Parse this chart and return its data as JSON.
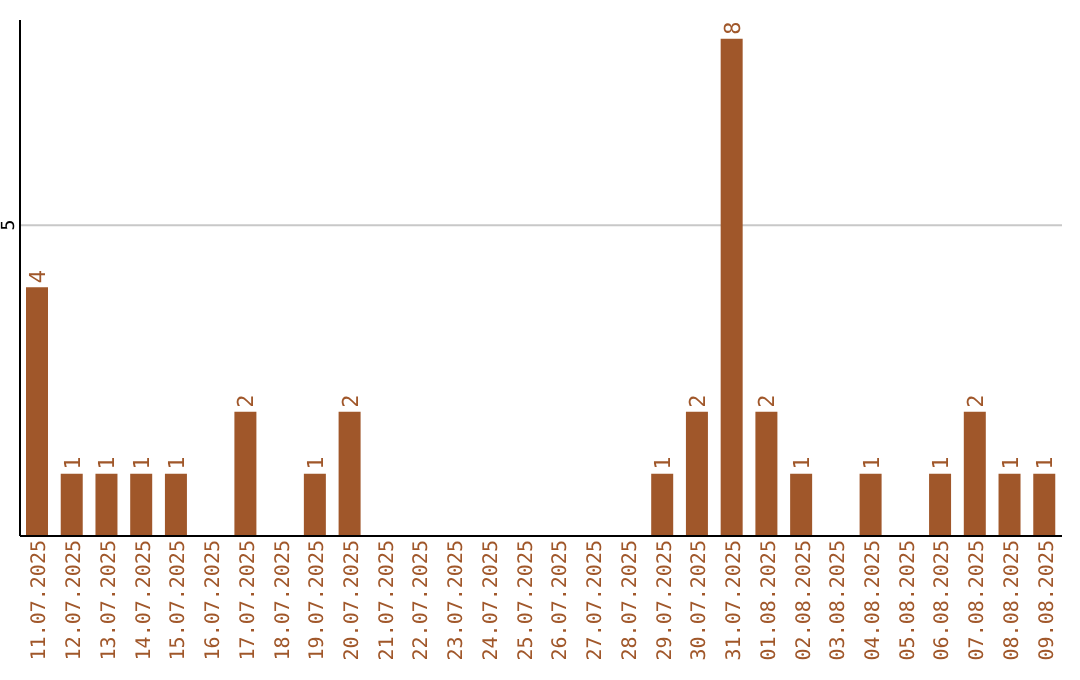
{
  "chart_data": {
    "type": "bar",
    "categories": [
      "11.07.2025",
      "12.07.2025",
      "13.07.2025",
      "14.07.2025",
      "15.07.2025",
      "16.07.2025",
      "17.07.2025",
      "18.07.2025",
      "19.07.2025",
      "20.07.2025",
      "21.07.2025",
      "22.07.2025",
      "23.07.2025",
      "24.07.2025",
      "25.07.2025",
      "26.07.2025",
      "27.07.2025",
      "28.07.2025",
      "29.07.2025",
      "30.07.2025",
      "31.07.2025",
      "01.08.2025",
      "02.08.2025",
      "03.08.2025",
      "04.08.2025",
      "05.08.2025",
      "06.08.2025",
      "07.08.2025",
      "08.08.2025",
      "09.08.2025"
    ],
    "values": [
      4,
      1,
      1,
      1,
      1,
      0,
      2,
      0,
      1,
      2,
      0,
      0,
      0,
      0,
      0,
      0,
      0,
      0,
      1,
      2,
      8,
      2,
      1,
      0,
      1,
      0,
      1,
      2,
      1,
      1
    ],
    "value_labels": [
      "4",
      "1",
      "1",
      "1",
      "1",
      null,
      "2",
      null,
      "1",
      "2",
      null,
      null,
      null,
      null,
      null,
      null,
      null,
      null,
      "1",
      "2",
      "8",
      "2",
      "1",
      null,
      "1",
      null,
      "1",
      "2",
      "1",
      "1"
    ],
    "color": "#a0572a",
    "ylim": [
      0,
      8.3
    ],
    "yticks": [
      5
    ],
    "grid": "y"
  }
}
